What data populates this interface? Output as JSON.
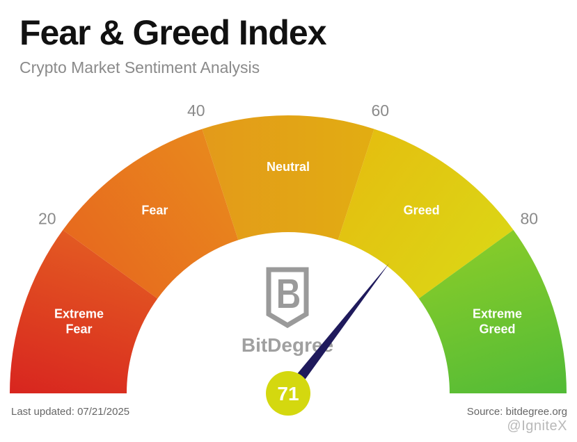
{
  "title": "Fear & Greed Index",
  "subtitle": "Crypto Market Sentiment Analysis",
  "footer": {
    "updated": "Last updated: 07/21/2025",
    "source": "Source: bitdegree.org"
  },
  "logo_text": "BitDegree",
  "watermark": "@IgniteX",
  "chart_data": {
    "type": "gauge",
    "range": [
      0,
      100
    ],
    "value": 71,
    "value_label": "71",
    "segments": [
      {
        "label": "Extreme Fear",
        "from": 0,
        "to": 20,
        "color_start": "#d8251f",
        "color_end": "#e35a22"
      },
      {
        "label": "Fear",
        "from": 20,
        "to": 40,
        "color_start": "#e76a1e",
        "color_end": "#e8881d"
      },
      {
        "label": "Neutral",
        "from": 40,
        "to": 60,
        "color_start": "#e39a1a",
        "color_end": "#e2ad12"
      },
      {
        "label": "Greed",
        "from": 60,
        "to": 80,
        "color_start": "#e4bf10",
        "color_end": "#dcd515"
      },
      {
        "label": "Extreme Greed",
        "from": 80,
        "to": 100,
        "color_start": "#86cb2a",
        "color_end": "#52bb37"
      }
    ],
    "ticks": [
      {
        "value": 20,
        "label": "20"
      },
      {
        "value": 40,
        "label": "40"
      },
      {
        "value": 60,
        "label": "60"
      },
      {
        "value": 80,
        "label": "80"
      }
    ],
    "needle_color": "#1f1a5c",
    "value_badge_color": "#d4d80f"
  }
}
